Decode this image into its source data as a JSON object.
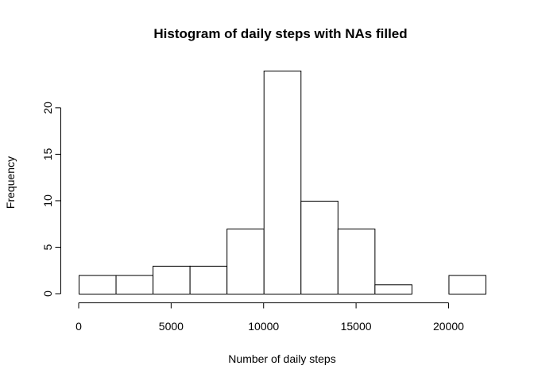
{
  "chart_data": {
    "type": "bar",
    "subtype": "histogram",
    "title": "Histogram of daily steps with NAs filled",
    "xlabel": "Number of daily steps",
    "ylabel": "Frequency",
    "bin_edges": [
      0,
      2000,
      4000,
      6000,
      8000,
      10000,
      12000,
      14000,
      16000,
      18000,
      20000,
      22000
    ],
    "values": [
      2,
      2,
      3,
      3,
      7,
      24,
      10,
      7,
      1,
      0,
      2
    ],
    "xlim": [
      0,
      22000
    ],
    "ylim": [
      0,
      24
    ],
    "x_ticks": [
      0,
      5000,
      10000,
      15000,
      20000
    ],
    "x_tick_labels": [
      "0",
      "5000",
      "10000",
      "15000",
      "20000"
    ],
    "y_ticks": [
      0,
      5,
      10,
      15,
      20
    ],
    "y_tick_labels": [
      "0",
      "5",
      "10",
      "15",
      "20"
    ],
    "grid": false,
    "legend": "none",
    "bar_fill": "#ffffff",
    "bar_stroke": "#000000"
  }
}
